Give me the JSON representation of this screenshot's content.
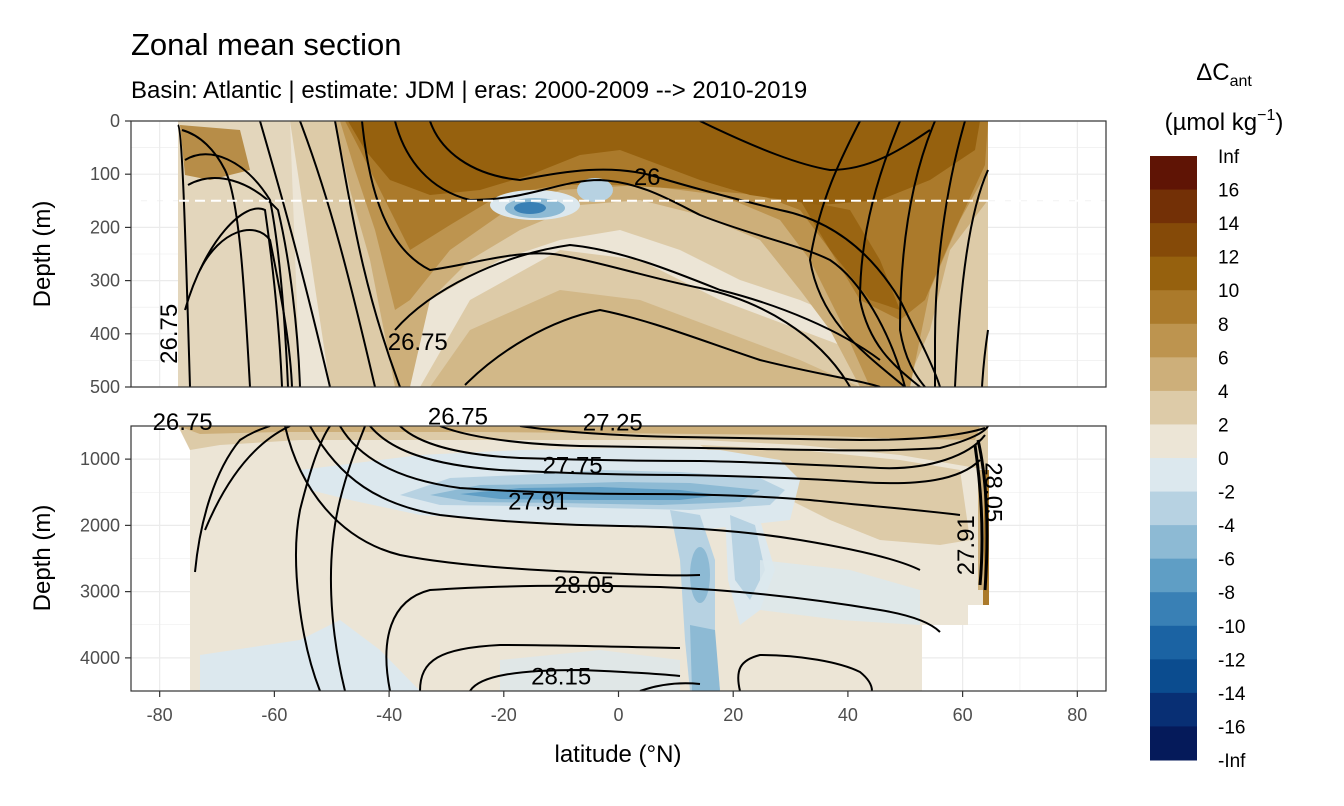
{
  "chart_data": {
    "type": "heatmap",
    "title": "Zonal mean section",
    "subtitle": "Basin: Atlantic | estimate: JDM  | eras: 2000-2009 --> 2010-2019",
    "xlabel": "latitude (°N)",
    "ylabel": "Depth (m)",
    "xlim": [
      -85,
      85
    ],
    "x_ticks": [
      -80,
      -60,
      -40,
      -20,
      0,
      20,
      40,
      60,
      80
    ],
    "panels": [
      {
        "name": "upper",
        "ylim": [
          0,
          500
        ],
        "y_ticks": [
          0,
          100,
          200,
          300,
          400,
          500
        ],
        "reference_line_depth": 150
      },
      {
        "name": "lower",
        "ylim": [
          500,
          4500
        ],
        "y_ticks": [
          1000,
          2000,
          3000,
          4000
        ]
      }
    ],
    "contour_labels": [
      {
        "text": "26",
        "lat": 5,
        "depth": 120,
        "panel": "upper"
      },
      {
        "text": "26.75",
        "lat": -35,
        "depth": 430,
        "panel": "upper"
      },
      {
        "text": "26.75",
        "lat": -77,
        "depth": 400,
        "panel": "upper",
        "rotate": -90
      },
      {
        "text": "26.75",
        "lat": -76,
        "depth": 560,
        "panel": "lower"
      },
      {
        "text": "26.75",
        "lat": -28,
        "depth": 480,
        "panel": "lower"
      },
      {
        "text": "27.25",
        "lat": -1,
        "depth": 570,
        "panel": "lower"
      },
      {
        "text": "27.75",
        "lat": -8,
        "depth": 1220,
        "panel": "lower"
      },
      {
        "text": "27.91",
        "lat": -14,
        "depth": 1760,
        "panel": "lower"
      },
      {
        "text": "28.05",
        "lat": -6,
        "depth": 3020,
        "panel": "lower"
      },
      {
        "text": "28.15",
        "lat": -10,
        "depth": 4400,
        "panel": "lower"
      },
      {
        "text": "28.05",
        "lat": 64,
        "depth": 1500,
        "panel": "lower",
        "rotate": 90
      },
      {
        "text": "27.91",
        "lat": 62,
        "depth": 2300,
        "panel": "lower",
        "rotate": -90
      }
    ],
    "legend": {
      "title_main": "ΔC",
      "title_sub": "ant",
      "title_unit_pre": "(µmol kg",
      "title_unit_sup": "−1",
      "title_unit_post": ")",
      "placement": "right",
      "labels": [
        "Inf",
        "16",
        "14",
        "12",
        "10",
        "8",
        "6",
        "4",
        "2",
        "0",
        "-2",
        "-4",
        "-6",
        "-8",
        "-10",
        "-12",
        "-14",
        "-16",
        "-Inf"
      ],
      "colors": [
        "#5f1405",
        "#733006",
        "#854a08",
        "#96610e",
        "#ab7a2b",
        "#bd944f",
        "#cdaf7a",
        "#ddcba8",
        "#ece5d6",
        "#dce8ee",
        "#b7d2e2",
        "#8dbad4",
        "#5f9ec5",
        "#3980b5",
        "#1b63a3",
        "#0b4c8f",
        "#082f74",
        "#051a5a"
      ]
    }
  }
}
